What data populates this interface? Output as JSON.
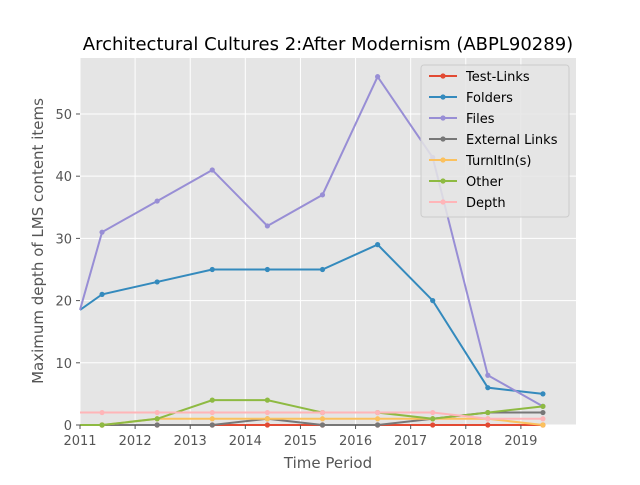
{
  "chart_data": {
    "type": "line",
    "title": "Architectural Cultures 2:After Modernism (ABPL90289)",
    "xlabel": "Time Period",
    "ylabel": "Maximum depth of LMS content items",
    "xlim": [
      2011.0,
      2020.0
    ],
    "ylim": [
      0,
      59
    ],
    "xticks": [
      2011,
      2012,
      2013,
      2014,
      2015,
      2016,
      2017,
      2018,
      2019
    ],
    "yticks": [
      0,
      10,
      20,
      30,
      40,
      50
    ],
    "grid": true,
    "legend_position": "top-right",
    "x": [
      2011.0,
      2011.4,
      2012.4,
      2013.4,
      2014.4,
      2015.4,
      2016.4,
      2017.4,
      2018.4,
      2019.4
    ],
    "series": [
      {
        "name": "Test-Links",
        "color": "#E24A33",
        "values": [
          0,
          0,
          0,
          0,
          0,
          0,
          0,
          0,
          0,
          0
        ]
      },
      {
        "name": "Folders",
        "color": "#348ABD",
        "values": [
          18.5,
          21,
          23,
          25,
          25,
          25,
          29,
          20,
          6,
          5
        ]
      },
      {
        "name": "Files",
        "color": "#988ED5",
        "values": [
          18.5,
          31,
          36,
          41,
          32,
          37,
          56,
          43,
          8,
          3
        ]
      },
      {
        "name": "External Links",
        "color": "#777777",
        "values": [
          0,
          0,
          0,
          0,
          1,
          0,
          0,
          1,
          2,
          2
        ]
      },
      {
        "name": "TurnItIn(s)",
        "color": "#FBC15E",
        "values": [
          0,
          0,
          1,
          1,
          1,
          1,
          1,
          1,
          1,
          0
        ]
      },
      {
        "name": "Other",
        "color": "#8EBA42",
        "values": [
          0,
          0,
          1,
          4,
          4,
          2,
          2,
          1,
          2,
          3
        ]
      },
      {
        "name": "Depth",
        "color": "#FFB5B8",
        "values": [
          2,
          2,
          2,
          2,
          2,
          2,
          2,
          2,
          1,
          1
        ]
      }
    ]
  }
}
